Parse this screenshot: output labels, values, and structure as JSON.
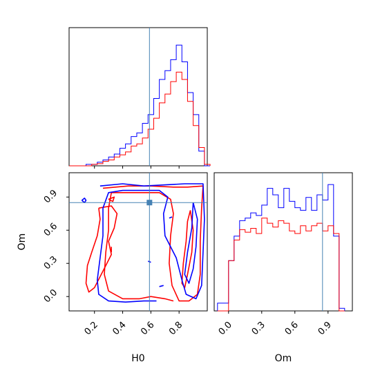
{
  "chart_data": {
    "type": "corner",
    "params": [
      "H0",
      "Om"
    ],
    "xlabel": "H0",
    "ylabel": "Om",
    "om_xlabel": "Om",
    "truth": {
      "H0": 0.59,
      "Om": 0.85
    },
    "colors": {
      "series_1": "#0000ff",
      "series_2": "#ff0000",
      "truth": "#4682b4"
    },
    "h0_range": [
      0.02,
      1.0
    ],
    "om_range": [
      -0.13,
      1.12
    ],
    "h0_ticks": [
      {
        "value": 0.2,
        "label": "0.2"
      },
      {
        "value": 0.4,
        "label": "0.4"
      },
      {
        "value": 0.6,
        "label": "0.6"
      },
      {
        "value": 0.8,
        "label": "0.8"
      }
    ],
    "om_ticks": [
      {
        "value": 0.0,
        "label": "0.0"
      },
      {
        "value": 0.3,
        "label": "0.3"
      },
      {
        "value": 0.6,
        "label": "0.6"
      },
      {
        "value": 0.9,
        "label": "0.9"
      }
    ],
    "h0_hist_max": 185,
    "om_hist_max": 1.05,
    "h0_histogram": {
      "bin_edges": [
        0.02,
        0.06,
        0.1,
        0.14,
        0.18,
        0.22,
        0.26,
        0.3,
        0.34,
        0.38,
        0.42,
        0.46,
        0.5,
        0.54,
        0.58,
        0.62,
        0.66,
        0.7,
        0.74,
        0.78,
        0.82,
        0.86,
        0.9,
        0.94,
        0.98,
        1.02
      ],
      "series": [
        {
          "values": [
            0,
            0,
            0,
            2,
            2,
            5,
            8,
            12,
            16,
            24,
            30,
            40,
            45,
            58,
            70,
            92,
            118,
            130,
            145,
            165,
            142,
            100,
            70,
            20,
            0
          ]
        },
        {
          "values": [
            0,
            0,
            0,
            0,
            2,
            3,
            6,
            8,
            12,
            15,
            19,
            27,
            30,
            38,
            50,
            65,
            86,
            98,
            115,
            128,
            118,
            88,
            55,
            25,
            2
          ]
        }
      ]
    },
    "om_histogram": {
      "bin_edges": [
        -0.1,
        -0.05,
        0.0,
        0.05,
        0.1,
        0.15,
        0.2,
        0.25,
        0.3,
        0.35,
        0.4,
        0.45,
        0.5,
        0.55,
        0.6,
        0.65,
        0.7,
        0.75,
        0.8,
        0.85,
        0.9,
        0.95,
        1.0,
        1.05
      ],
      "series": [
        {
          "values": [
            0.06,
            0.06,
            0.39,
            0.58,
            0.7,
            0.72,
            0.76,
            0.74,
            0.82,
            0.95,
            0.9,
            0.8,
            0.95,
            0.85,
            0.8,
            0.78,
            0.88,
            0.78,
            0.9,
            0.86,
            0.98,
            0.58,
            0.02
          ]
        },
        {
          "values": [
            0.0,
            0.0,
            0.39,
            0.55,
            0.63,
            0.61,
            0.64,
            0.6,
            0.72,
            0.68,
            0.65,
            0.7,
            0.68,
            0.62,
            0.6,
            0.66,
            0.62,
            0.66,
            0.68,
            0.62,
            0.66,
            0.6,
            0.0
          ]
        }
      ]
    },
    "contours": [
      {
        "series": 2,
        "points": [
          [
            0.26,
            0.98
          ],
          [
            0.44,
            1.0
          ],
          [
            0.6,
            1.0
          ],
          [
            0.76,
            0.99
          ],
          [
            0.86,
            0.99
          ],
          [
            0.97,
            1.0
          ],
          [
            0.96,
            0.8
          ],
          [
            0.95,
            0.5
          ],
          [
            0.95,
            0.2
          ],
          [
            0.93,
            0.02
          ],
          [
            0.87,
            -0.04
          ],
          [
            0.8,
            -0.04
          ],
          [
            0.75,
            0.1
          ],
          [
            0.73,
            0.3
          ],
          [
            0.74,
            0.55
          ],
          [
            0.76,
            0.75
          ],
          [
            0.74,
            0.88
          ],
          [
            0.66,
            0.94
          ],
          [
            0.52,
            0.94
          ],
          [
            0.4,
            0.94
          ],
          [
            0.32,
            0.94
          ],
          [
            0.3,
            0.8
          ],
          [
            0.3,
            0.6
          ],
          [
            0.28,
            0.4
          ],
          [
            0.27,
            0.2
          ],
          [
            0.3,
            0.05
          ],
          [
            0.4,
            -0.02
          ],
          [
            0.52,
            -0.02
          ],
          [
            0.6,
            0.0
          ],
          [
            0.7,
            -0.02
          ],
          [
            0.76,
            -0.04
          ]
        ]
      },
      {
        "series": 2,
        "points": [
          [
            0.23,
            0.8
          ],
          [
            0.32,
            0.82
          ],
          [
            0.36,
            0.75
          ],
          [
            0.34,
            0.62
          ],
          [
            0.3,
            0.5
          ],
          [
            0.32,
            0.38
          ],
          [
            0.28,
            0.28
          ],
          [
            0.24,
            0.18
          ],
          [
            0.2,
            0.08
          ],
          [
            0.16,
            0.04
          ],
          [
            0.14,
            0.12
          ],
          [
            0.15,
            0.28
          ],
          [
            0.18,
            0.4
          ],
          [
            0.22,
            0.55
          ],
          [
            0.24,
            0.7
          ],
          [
            0.23,
            0.8
          ]
        ]
      },
      {
        "series": 2,
        "points": [
          [
            0.88,
            0.78
          ],
          [
            0.9,
            0.6
          ],
          [
            0.89,
            0.4
          ],
          [
            0.86,
            0.2
          ],
          [
            0.84,
            0.08
          ],
          [
            0.82,
            0.12
          ],
          [
            0.83,
            0.3
          ],
          [
            0.85,
            0.5
          ],
          [
            0.86,
            0.68
          ],
          [
            0.88,
            0.78
          ]
        ]
      },
      {
        "series": 2,
        "points": [
          [
            0.3,
            0.88
          ],
          [
            0.34,
            0.9
          ],
          [
            0.33,
            0.86
          ],
          [
            0.3,
            0.88
          ]
        ]
      },
      {
        "series": 2,
        "points": [
          [
            0.32,
            0.45
          ],
          [
            0.32,
            0.4
          ]
        ]
      },
      {
        "series": 1,
        "points": [
          [
            0.24,
            1.0
          ],
          [
            0.4,
            1.02
          ],
          [
            0.55,
            1.0
          ],
          [
            0.7,
            1.01
          ],
          [
            0.84,
            1.02
          ],
          [
            0.97,
            1.02
          ],
          [
            0.98,
            0.7
          ],
          [
            0.97,
            0.4
          ],
          [
            0.96,
            0.1
          ],
          [
            0.92,
            -0.02
          ],
          [
            0.85,
            0.02
          ],
          [
            0.82,
            0.15
          ],
          [
            0.78,
            0.35
          ],
          [
            0.7,
            0.55
          ],
          [
            0.69,
            0.75
          ],
          [
            0.72,
            0.9
          ],
          [
            0.66,
            0.96
          ],
          [
            0.52,
            0.96
          ],
          [
            0.4,
            0.96
          ],
          [
            0.3,
            0.94
          ],
          [
            0.26,
            0.8
          ],
          [
            0.26,
            0.55
          ],
          [
            0.24,
            0.35
          ],
          [
            0.22,
            0.15
          ],
          [
            0.23,
            0.02
          ],
          [
            0.3,
            -0.04
          ],
          [
            0.42,
            -0.05
          ],
          [
            0.55,
            -0.04
          ],
          [
            0.64,
            -0.04
          ]
        ]
      },
      {
        "series": 1,
        "points": [
          [
            0.9,
            0.85
          ],
          [
            0.93,
            0.7
          ],
          [
            0.92,
            0.45
          ],
          [
            0.9,
            0.25
          ],
          [
            0.87,
            0.12
          ],
          [
            0.84,
            0.2
          ],
          [
            0.86,
            0.4
          ],
          [
            0.89,
            0.62
          ],
          [
            0.9,
            0.85
          ]
        ]
      },
      {
        "series": 1,
        "points": [
          [
            0.11,
            0.87
          ],
          [
            0.13,
            0.89
          ],
          [
            0.14,
            0.87
          ],
          [
            0.13,
            0.85
          ],
          [
            0.11,
            0.87
          ]
        ]
      },
      {
        "series": 1,
        "points": [
          [
            0.73,
            0.71
          ],
          [
            0.75,
            0.72
          ]
        ]
      },
      {
        "series": 1,
        "points": [
          [
            0.58,
            0.32
          ],
          [
            0.6,
            0.31
          ]
        ]
      },
      {
        "series": 1,
        "points": [
          [
            0.66,
            0.09
          ],
          [
            0.69,
            0.1
          ]
        ]
      }
    ]
  }
}
